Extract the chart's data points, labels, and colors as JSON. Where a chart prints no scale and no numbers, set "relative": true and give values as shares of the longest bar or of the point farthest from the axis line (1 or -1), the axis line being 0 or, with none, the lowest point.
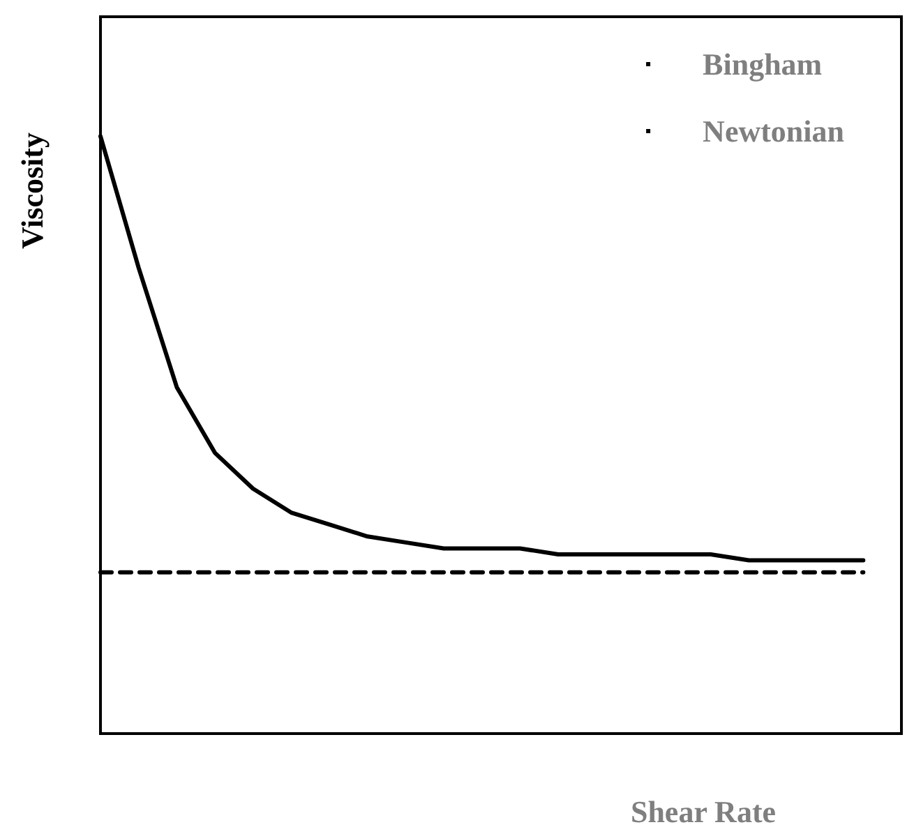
{
  "chart_data": {
    "type": "line",
    "xlabel": "Shear Rate",
    "ylabel": "Viscosity",
    "relative": true,
    "legend": "top right",
    "marker": "none",
    "categories": [
      null,
      null,
      null,
      null,
      null,
      null,
      null,
      null,
      null,
      null,
      null,
      null,
      null,
      null,
      null,
      null,
      null,
      null,
      null,
      null,
      null,
      null
    ],
    "series": [
      {
        "name": "Bingham",
        "color": "#000000",
        "line_style": "solid",
        "values": [
          1,
          0.78,
          0.58,
          0.47,
          0.41,
          0.37,
          0.35,
          0.33,
          0.32,
          0.31,
          0.31,
          0.31,
          0.3,
          0.3,
          0.3,
          0.3,
          0.3,
          0.29,
          0.29,
          0.29,
          0.29,
          null
        ]
      },
      {
        "name": "Newtonian",
        "color": "#000000",
        "line_style": "dashed",
        "values": [
          0.27,
          0.27,
          0.27,
          0.27,
          0.27,
          0.27,
          0.27,
          0.27,
          0.27,
          0.27,
          0.27,
          0.27,
          0.27,
          0.27,
          0.27,
          0.27,
          0.27,
          0.27,
          0.27,
          0.27,
          0.27,
          null
        ]
      }
    ]
  }
}
